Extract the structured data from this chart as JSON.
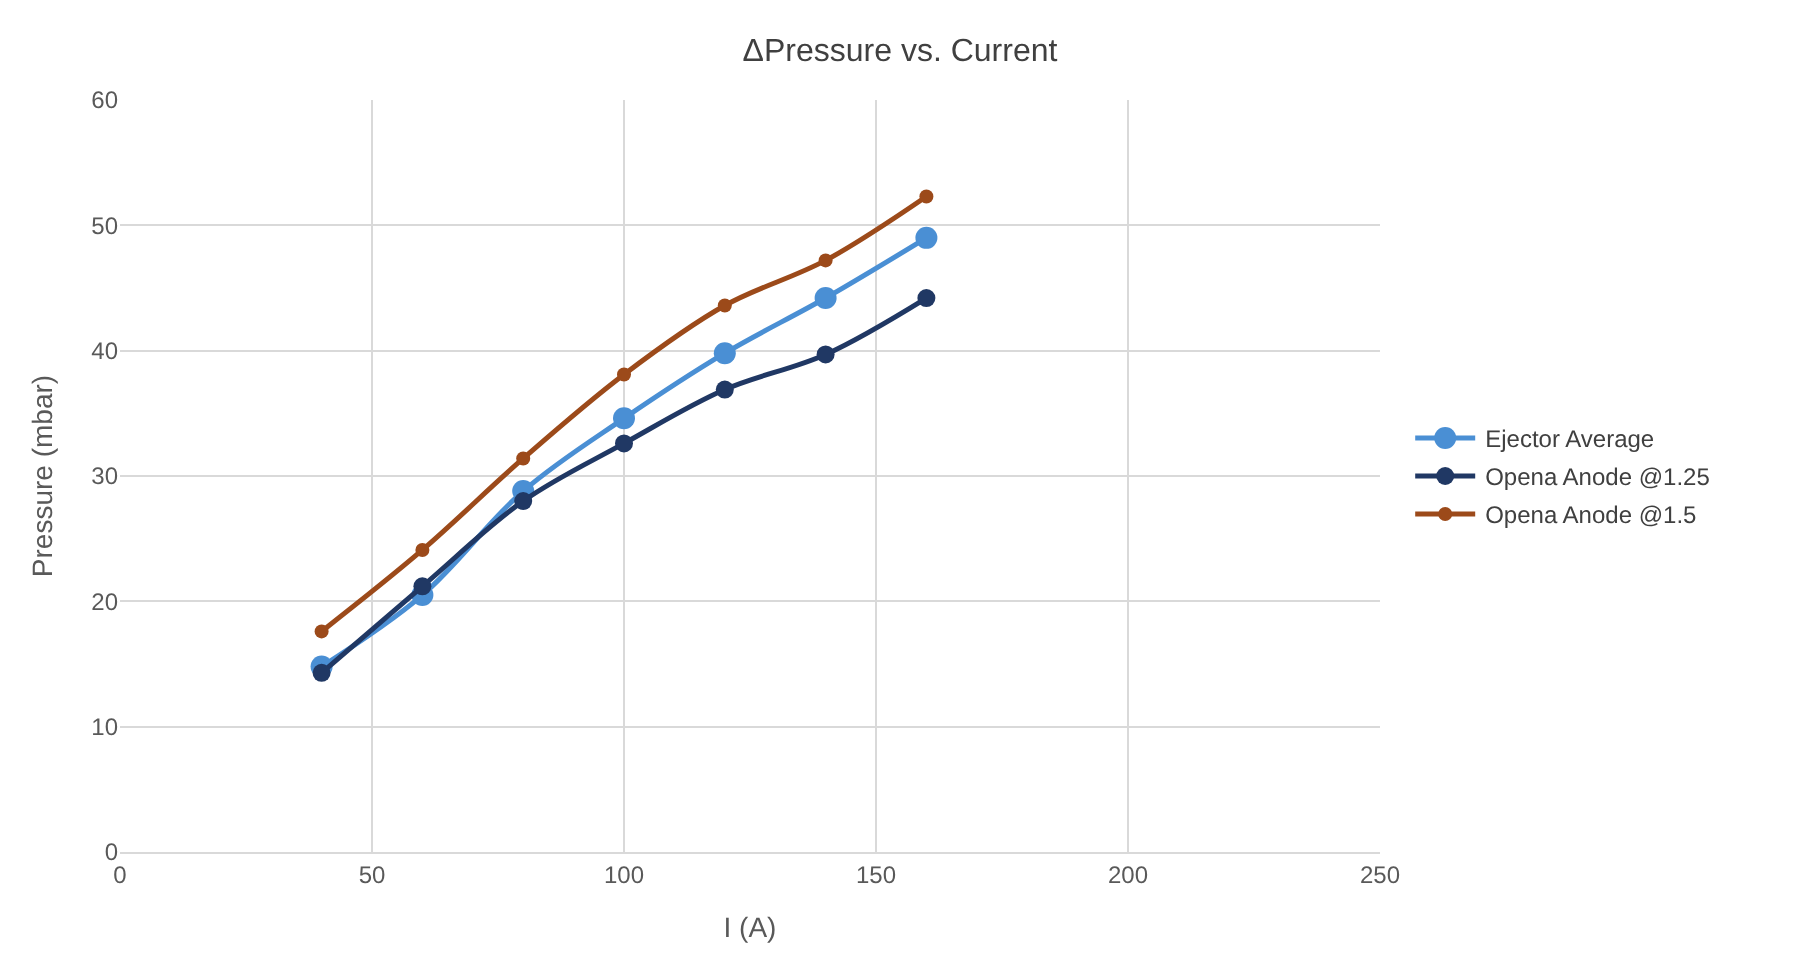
{
  "chart_data": {
    "type": "line",
    "title": "ΔPressure vs. Current",
    "xlabel": "I (A)",
    "ylabel": "Pressure (mbar)",
    "x": [
      40,
      60,
      80,
      100,
      120,
      140,
      160
    ],
    "series": [
      {
        "name": "Ejector Average",
        "color": "#4a8fd4",
        "values": [
          14.8,
          20.5,
          28.8,
          34.6,
          39.8,
          44.2,
          49.0
        ]
      },
      {
        "name": "Opena Anode @1.25",
        "color": "#203864",
        "values": [
          14.3,
          21.2,
          28.0,
          32.6,
          36.9,
          39.7,
          44.2
        ]
      },
      {
        "name": "Opena Anode @1.5",
        "color": "#9c4a1a",
        "values": [
          17.6,
          24.1,
          31.4,
          38.1,
          43.6,
          47.2,
          52.3
        ]
      }
    ],
    "xlim": [
      0,
      250
    ],
    "xticks": [
      0,
      50,
      100,
      150,
      200,
      250
    ],
    "ylim": [
      0,
      60
    ],
    "yticks": [
      0,
      10,
      20,
      30,
      40,
      50,
      60
    ],
    "grid": true,
    "legend": "right",
    "marker": "circle",
    "line_style": "solid"
  }
}
